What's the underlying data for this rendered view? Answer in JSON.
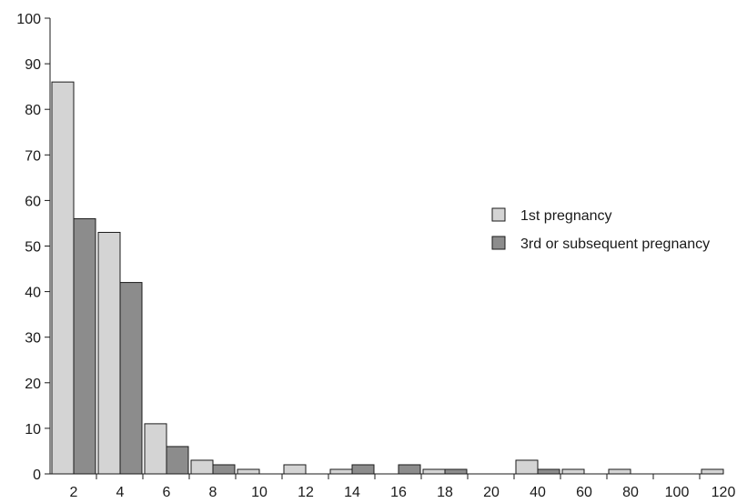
{
  "chart_data": {
    "type": "bar",
    "title": "",
    "xlabel": "",
    "ylabel": "",
    "ylim": [
      0,
      100
    ],
    "yticks": [
      0,
      10,
      20,
      30,
      40,
      50,
      60,
      70,
      80,
      90,
      100
    ],
    "categories": [
      "2",
      "4",
      "6",
      "8",
      "10",
      "12",
      "14",
      "16",
      "18",
      "20",
      "40",
      "60",
      "80",
      "100",
      "120"
    ],
    "series": [
      {
        "name": "1st pregnancy",
        "color": "#d4d4d4",
        "values": [
          86,
          53,
          11,
          3,
          1,
          2,
          1,
          0,
          1,
          0,
          3,
          1,
          1,
          0,
          1
        ]
      },
      {
        "name": "3rd or subsequent pregnancy",
        "color": "#8c8c8c",
        "values": [
          56,
          42,
          6,
          2,
          0,
          0,
          2,
          2,
          1,
          0,
          1,
          0,
          0,
          0,
          0
        ]
      }
    ],
    "legend_position": "right",
    "grid": false
  }
}
